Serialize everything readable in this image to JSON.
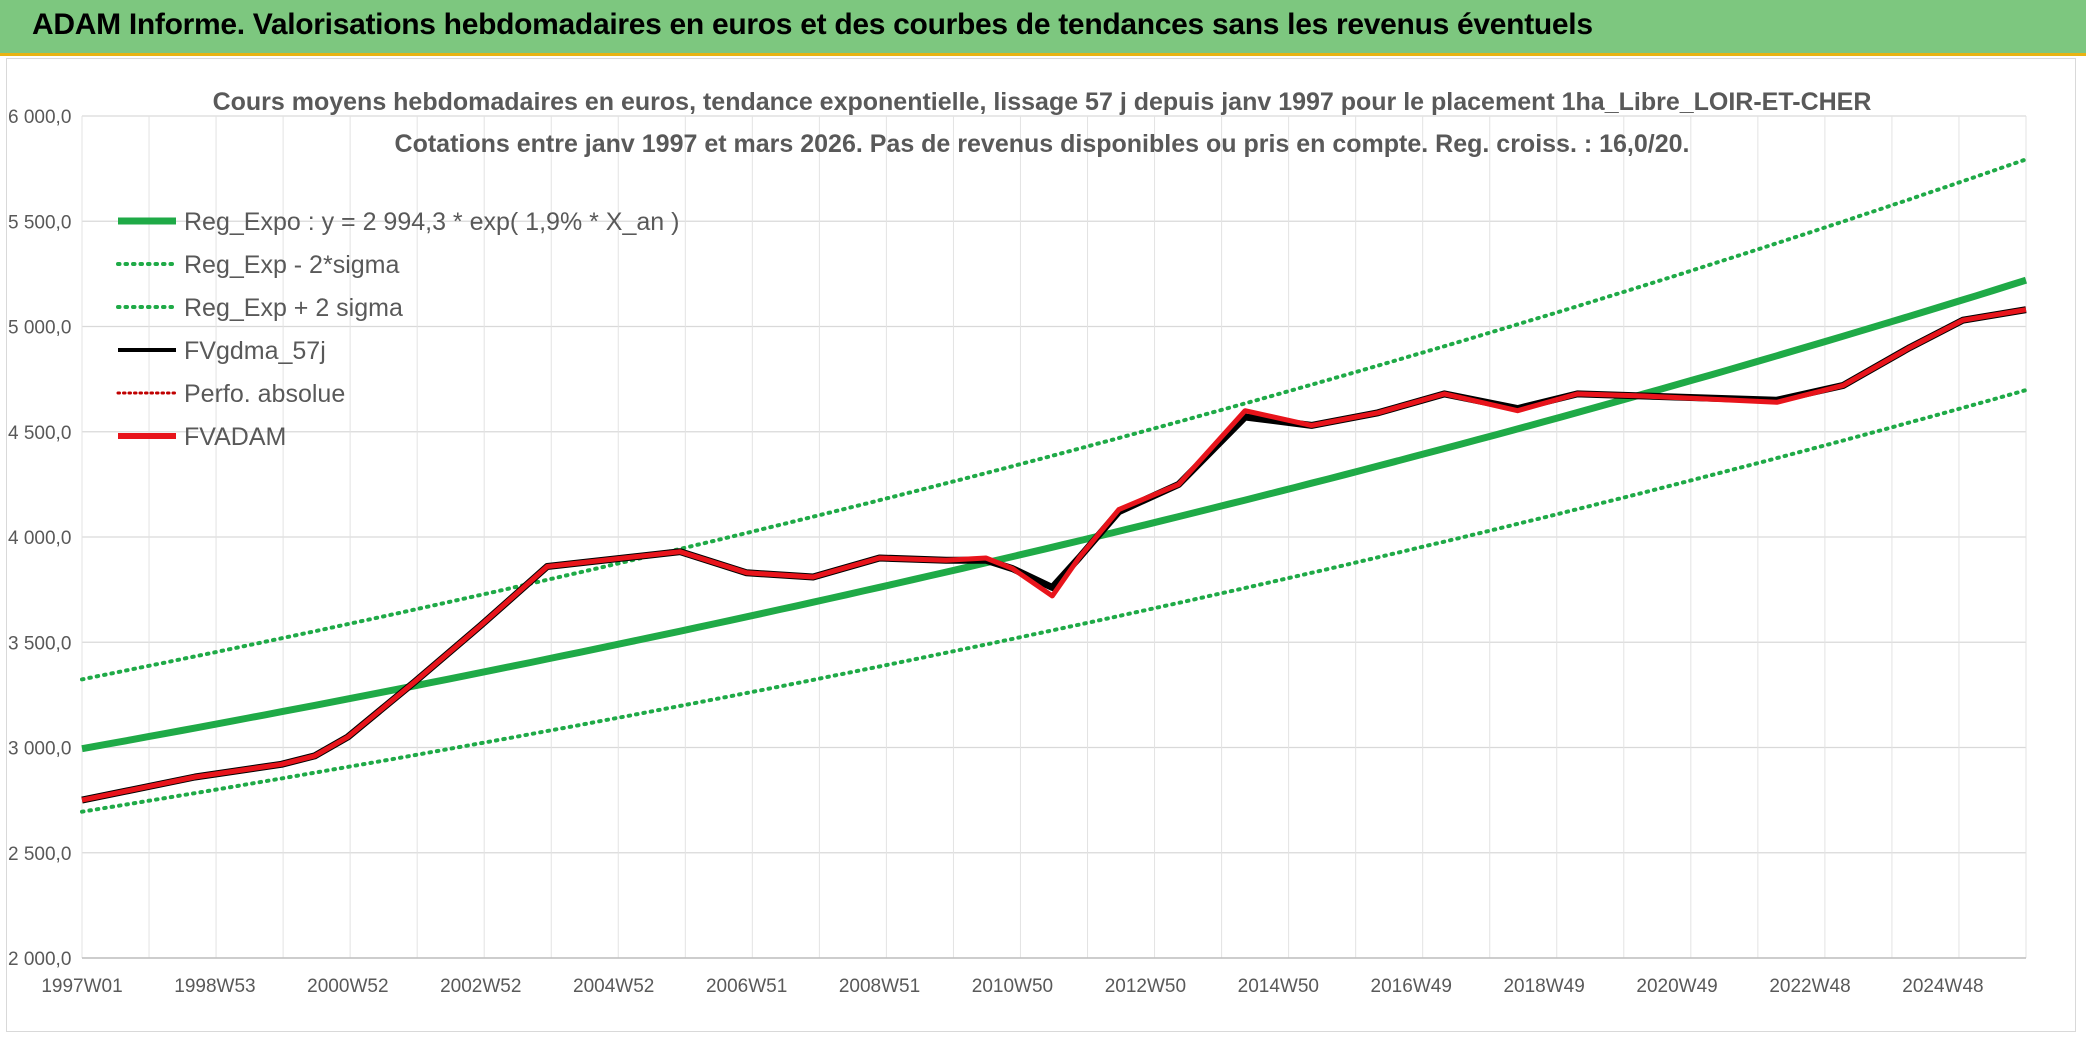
{
  "banner": {
    "title": "ADAM Informe. Valorisations hebdomadaires en euros et des courbes de tendances sans les revenus éventuels"
  },
  "colors": {
    "banner": "#7dc77f",
    "banner_accent": "#e9b313",
    "reg": "#1faa47",
    "fvgdma": "#000000",
    "fvadam": "#e8141b",
    "perfo": "#c00000"
  },
  "chart_data": {
    "type": "line",
    "title": "Cours moyens hebdomadaires en euros, tendance exponentielle, lissage 57 j depuis janv 1997 pour le placement 1ha_Libre_LOIR-ET-CHER",
    "subtitle": "Cotations entre janv 1997 et mars 2026. Pas de revenus disponibles ou pris en compte. Reg. croiss. : 16,0/20.",
    "xlabel": "",
    "ylabel": "",
    "x_range": [
      1997.0,
      2026.25
    ],
    "ylim": [
      2000,
      6000
    ],
    "y_ticks": [
      "2 000,0",
      "2 500,0",
      "3 000,0",
      "3 500,0",
      "4 000,0",
      "4 500,0",
      "5 000,0",
      "5 500,0",
      "6 000,0"
    ],
    "x_tick_labels": [
      "1997W01",
      "1998W53",
      "2000W52",
      "2002W52",
      "2004W52",
      "2006W51",
      "2008W51",
      "2010W50",
      "2012W50",
      "2014W50",
      "2016W49",
      "2018W49",
      "2020W49",
      "2022W48",
      "2024W48"
    ],
    "grid": true,
    "legend_position": "top-left",
    "regression": {
      "a": 2994.3,
      "rate": 0.019,
      "sigma_factor_minus": 0.9,
      "sigma_factor_plus": 1.11
    },
    "series": [
      {
        "name": "Reg_Expo : y = 2 994,3 * exp( 1,9% *  X_an )",
        "style": "solid-thick",
        "color": "#1faa47"
      },
      {
        "name": "Reg_Exp - 2*sigma",
        "style": "dotted",
        "color": "#1faa47"
      },
      {
        "name": "Reg_Exp + 2 sigma",
        "style": "dotted",
        "color": "#1faa47"
      },
      {
        "name": "FVgdma_57j",
        "style": "solid",
        "color": "#000000",
        "x": [
          1997.0,
          1998.7,
          2000.0,
          2000.5,
          2001.0,
          2002.0,
          2003.0,
          2004.0,
          2006.0,
          2007.0,
          2008.0,
          2009.0,
          2010.0,
          2010.6,
          2011.0,
          2011.6,
          2012.0,
          2012.6,
          2013.5,
          2014.5,
          2015.5,
          2016.5,
          2017.5,
          2018.6,
          2019.5,
          2020.5,
          2022.5,
          2023.5,
          2024.5,
          2025.3,
          2026.25
        ],
        "values": [
          2750,
          2860,
          2920,
          2960,
          3050,
          3310,
          3580,
          3860,
          3930,
          3830,
          3810,
          3900,
          3890,
          3890,
          3850,
          3760,
          3900,
          4120,
          4250,
          4570,
          4530,
          4590,
          4680,
          4610,
          4680,
          4670,
          4650,
          4720,
          4900,
          5030,
          5080
        ]
      },
      {
        "name": "Perfo. absolue",
        "style": "dotted",
        "color": "#c00000",
        "x": [],
        "values": []
      },
      {
        "name": "FVADAM",
        "style": "solid-thick",
        "color": "#e8141b",
        "x": [
          1997.0,
          1998.7,
          2000.0,
          2000.5,
          2001.0,
          2002.0,
          2003.0,
          2004.0,
          2006.0,
          2007.0,
          2008.0,
          2009.0,
          2010.0,
          2010.6,
          2011.0,
          2011.6,
          2012.0,
          2012.6,
          2013.5,
          2014.5,
          2015.5,
          2016.5,
          2017.5,
          2018.6,
          2019.5,
          2020.5,
          2022.5,
          2023.5,
          2024.5,
          2025.3,
          2026.25
        ],
        "values": [
          2750,
          2860,
          2920,
          2960,
          3050,
          3310,
          3580,
          3860,
          3930,
          3830,
          3810,
          3900,
          3890,
          3900,
          3850,
          3720,
          3900,
          4130,
          4250,
          4600,
          4530,
          4590,
          4680,
          4600,
          4680,
          4670,
          4640,
          4720,
          4900,
          5030,
          5080
        ]
      }
    ]
  }
}
